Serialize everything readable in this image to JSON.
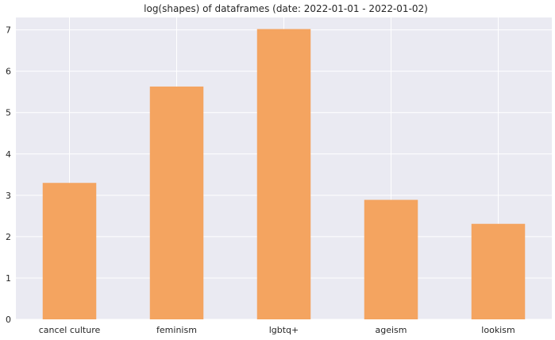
{
  "chart_data": {
    "type": "bar",
    "title": "log(shapes) of dataframes (date: 2022-01-01 - 2022-01-02)",
    "xlabel": "",
    "ylabel": "",
    "categories": [
      "cancel culture",
      "feminism",
      "lgbtq+",
      "ageism",
      "lookism"
    ],
    "values": [
      3.3,
      5.63,
      7.02,
      2.89,
      2.31
    ],
    "ylim": [
      0,
      7.3
    ],
    "yticks": [
      0,
      1,
      2,
      3,
      4,
      5,
      6,
      7
    ],
    "grid": true,
    "bar_color": "#f4a460",
    "background_color": "#eaeaf2",
    "grid_color": "#ffffff"
  }
}
